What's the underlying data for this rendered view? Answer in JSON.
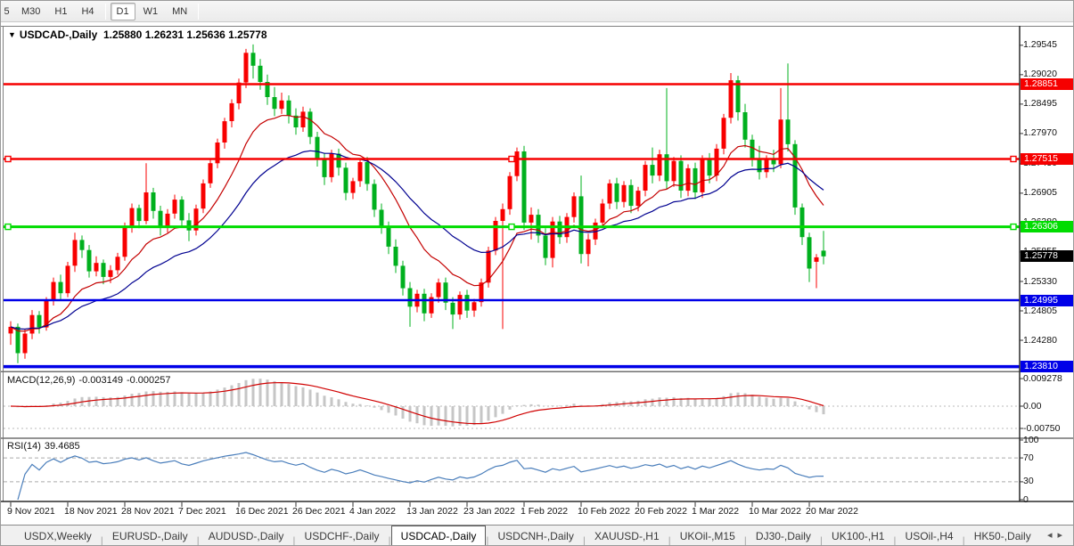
{
  "toolbar": {
    "timeframes": [
      {
        "label": "5",
        "active": false
      },
      {
        "label": "M30",
        "active": false
      },
      {
        "label": "H1",
        "active": false
      },
      {
        "label": "H4",
        "active": false
      },
      {
        "label": "D1",
        "active": true
      },
      {
        "label": "W1",
        "active": false
      },
      {
        "label": "MN",
        "active": false
      }
    ]
  },
  "chart_header": {
    "collapse_icon": "▼",
    "symbol": "USDCAD-,Daily",
    "open": "1.25880",
    "high": "1.26231",
    "low": "1.25636",
    "close": "1.25778"
  },
  "price_axis": {
    "ticks": [
      {
        "label": "1.29545",
        "price": 1.29545
      },
      {
        "label": "1.29020",
        "price": 1.2902
      },
      {
        "label": "1.28495",
        "price": 1.28495
      },
      {
        "label": "1.27970",
        "price": 1.2797
      },
      {
        "label": "1.27430",
        "price": 1.2743
      },
      {
        "label": "1.26905",
        "price": 1.26905
      },
      {
        "label": "1.26380",
        "price": 1.2638
      },
      {
        "label": "1.25855",
        "price": 1.25855
      },
      {
        "label": "1.25330",
        "price": 1.2533
      },
      {
        "label": "1.24805",
        "price": 1.24805
      },
      {
        "label": "1.24280",
        "price": 1.2428
      },
      {
        "label": "1.23755",
        "price": 1.23755
      }
    ]
  },
  "levels": [
    {
      "name": "resistance-1",
      "label": "1.28851",
      "price": 1.28851,
      "color": "#f60000",
      "width": 2.5,
      "handles": false
    },
    {
      "name": "resistance-2",
      "label": "1.27515",
      "price": 1.27515,
      "color": "#f60000",
      "width": 2.5,
      "handles": true
    },
    {
      "name": "support-1",
      "label": "1.26306",
      "price": 1.26306,
      "color": "#00dc00",
      "width": 3,
      "handles": true
    },
    {
      "name": "support-2",
      "label": "1.24995",
      "price": 1.24995,
      "color": "#0000e8",
      "width": 2.5,
      "handles": false
    },
    {
      "name": "support-3",
      "label": "1.23810",
      "price": 1.2381,
      "color": "#0000e8",
      "width": 3.5,
      "handles": false
    }
  ],
  "current_price_tag": {
    "label": "1.25778",
    "price": 1.25778,
    "bg": "#000000"
  },
  "chart_data": {
    "type": "candlestick",
    "symbol": "USDCAD",
    "timeframe": "Daily",
    "y_range": [
      1.2374,
      1.2986
    ],
    "colors": {
      "bull": "#f80000",
      "bear": "#00b01e"
    },
    "x_tick_labels": [
      {
        "label": "9 Nov 2021",
        "index": 0
      },
      {
        "label": "18 Nov 2021",
        "index": 8
      },
      {
        "label": "28 Nov 2021",
        "index": 16
      },
      {
        "label": "7 Dec 2021",
        "index": 24
      },
      {
        "label": "16 Dec 2021",
        "index": 32
      },
      {
        "label": "26 Dec 2021",
        "index": 40
      },
      {
        "label": "4 Jan 2022",
        "index": 48
      },
      {
        "label": "13 Jan 2022",
        "index": 56
      },
      {
        "label": "23 Jan 2022",
        "index": 64
      },
      {
        "label": "1 Feb 2022",
        "index": 72
      },
      {
        "label": "10 Feb 2022",
        "index": 80
      },
      {
        "label": "20 Feb 2022",
        "index": 88
      },
      {
        "label": "1 Mar 2022",
        "index": 96
      },
      {
        "label": "10 Mar 2022",
        "index": 104
      },
      {
        "label": "20 Mar 2022",
        "index": 112
      }
    ],
    "candles": [
      [
        1.244,
        1.2462,
        1.242,
        1.2452
      ],
      [
        1.2452,
        1.2458,
        1.2387,
        1.2405
      ],
      [
        1.2405,
        1.2448,
        1.2395,
        1.244
      ],
      [
        1.244,
        1.2482,
        1.243,
        1.2473
      ],
      [
        1.2473,
        1.248,
        1.244,
        1.2451
      ],
      [
        1.2451,
        1.2505,
        1.2445,
        1.2498
      ],
      [
        1.2498,
        1.254,
        1.249,
        1.2532
      ],
      [
        1.2532,
        1.2545,
        1.25,
        1.2512
      ],
      [
        1.2512,
        1.2568,
        1.2505,
        1.2561
      ],
      [
        1.2561,
        1.262,
        1.255,
        1.2607
      ],
      [
        1.2607,
        1.2615,
        1.2575,
        1.2589
      ],
      [
        1.2589,
        1.2598,
        1.254,
        1.2551
      ],
      [
        1.2551,
        1.2578,
        1.2542,
        1.2566
      ],
      [
        1.2566,
        1.2572,
        1.2528,
        1.2541
      ],
      [
        1.2541,
        1.2562,
        1.253,
        1.2553
      ],
      [
        1.2553,
        1.2584,
        1.2545,
        1.2577
      ],
      [
        1.2577,
        1.2638,
        1.257,
        1.2631
      ],
      [
        1.2631,
        1.2672,
        1.262,
        1.2664
      ],
      [
        1.2664,
        1.267,
        1.2628,
        1.2641
      ],
      [
        1.2641,
        1.2744,
        1.2635,
        1.2692
      ],
      [
        1.2692,
        1.27,
        1.2645,
        1.2659
      ],
      [
        1.2659,
        1.2668,
        1.2615,
        1.2631
      ],
      [
        1.2631,
        1.2662,
        1.262,
        1.2654
      ],
      [
        1.2654,
        1.2688,
        1.2645,
        1.2679
      ],
      [
        1.2679,
        1.2685,
        1.263,
        1.2642
      ],
      [
        1.2642,
        1.2655,
        1.2605,
        1.2624
      ],
      [
        1.2624,
        1.267,
        1.2615,
        1.2663
      ],
      [
        1.2663,
        1.2715,
        1.2655,
        1.2708
      ],
      [
        1.2708,
        1.275,
        1.27,
        1.2744
      ],
      [
        1.2744,
        1.2788,
        1.2735,
        1.2781
      ],
      [
        1.2781,
        1.2825,
        1.277,
        1.2819
      ],
      [
        1.2819,
        1.2858,
        1.2808,
        1.2851
      ],
      [
        1.2851,
        1.2895,
        1.284,
        1.2888
      ],
      [
        1.2888,
        1.2948,
        1.2878,
        1.2941
      ],
      [
        1.2941,
        1.2956,
        1.2895,
        1.2918
      ],
      [
        1.2918,
        1.293,
        1.2875,
        1.2889
      ],
      [
        1.2889,
        1.2902,
        1.2848,
        1.2862
      ],
      [
        1.2862,
        1.288,
        1.2828,
        1.2841
      ],
      [
        1.2841,
        1.287,
        1.2832,
        1.2856
      ],
      [
        1.2856,
        1.2865,
        1.2815,
        1.2829
      ],
      [
        1.2829,
        1.2842,
        1.2795,
        1.2808
      ],
      [
        1.2808,
        1.2845,
        1.28,
        1.2836
      ],
      [
        1.2836,
        1.2842,
        1.2778,
        1.2791
      ],
      [
        1.2791,
        1.28,
        1.2738,
        1.2751
      ],
      [
        1.2751,
        1.2762,
        1.2705,
        1.2719
      ],
      [
        1.2719,
        1.2768,
        1.271,
        1.2761
      ],
      [
        1.2761,
        1.277,
        1.2722,
        1.2736
      ],
      [
        1.2736,
        1.2745,
        1.2678,
        1.2691
      ],
      [
        1.2691,
        1.2718,
        1.268,
        1.2712
      ],
      [
        1.2712,
        1.2752,
        1.2702,
        1.2746
      ],
      [
        1.2746,
        1.2755,
        1.2695,
        1.2707
      ],
      [
        1.2707,
        1.2715,
        1.2648,
        1.2661
      ],
      [
        1.2661,
        1.2672,
        1.2618,
        1.2631
      ],
      [
        1.2631,
        1.264,
        1.2582,
        1.2595
      ],
      [
        1.2595,
        1.2608,
        1.2548,
        1.2561
      ],
      [
        1.2561,
        1.257,
        1.2508,
        1.2521
      ],
      [
        1.2521,
        1.2532,
        1.2452,
        1.2488
      ],
      [
        1.2488,
        1.2518,
        1.2478,
        1.2511
      ],
      [
        1.2511,
        1.252,
        1.2462,
        1.2476
      ],
      [
        1.2476,
        1.2512,
        1.2468,
        1.2505
      ],
      [
        1.2505,
        1.2538,
        1.2495,
        1.2531
      ],
      [
        1.2531,
        1.254,
        1.2482,
        1.2495
      ],
      [
        1.2495,
        1.2505,
        1.2448,
        1.2474
      ],
      [
        1.2474,
        1.2515,
        1.2465,
        1.2509
      ],
      [
        1.2509,
        1.2518,
        1.2468,
        1.2481
      ],
      [
        1.2481,
        1.2502,
        1.247,
        1.2496
      ],
      [
        1.2496,
        1.2538,
        1.2488,
        1.2531
      ],
      [
        1.2531,
        1.2595,
        1.2522,
        1.2588
      ],
      [
        1.2588,
        1.2648,
        1.258,
        1.2641
      ],
      [
        1.2641,
        1.2672,
        1.2448,
        1.2662
      ],
      [
        1.2662,
        1.2728,
        1.2652,
        1.2721
      ],
      [
        1.2721,
        1.2772,
        1.2712,
        1.2765
      ],
      [
        1.2765,
        1.2775,
        1.2625,
        1.2638
      ],
      [
        1.2638,
        1.2665,
        1.2608,
        1.2652
      ],
      [
        1.2652,
        1.2662,
        1.2602,
        1.2615
      ],
      [
        1.2615,
        1.2628,
        1.2562,
        1.2575
      ],
      [
        1.2575,
        1.2648,
        1.2558,
        1.264
      ],
      [
        1.264,
        1.265,
        1.26,
        1.2612
      ],
      [
        1.2612,
        1.2655,
        1.2602,
        1.2648
      ],
      [
        1.2648,
        1.2692,
        1.2638,
        1.2685
      ],
      [
        1.2685,
        1.2722,
        1.2565,
        1.2582
      ],
      [
        1.2582,
        1.2618,
        1.256,
        1.2608
      ],
      [
        1.2608,
        1.2645,
        1.2598,
        1.2638
      ],
      [
        1.2638,
        1.268,
        1.2628,
        1.2672
      ],
      [
        1.2672,
        1.2715,
        1.2662,
        1.2708
      ],
      [
        1.2708,
        1.2718,
        1.2662,
        1.2675
      ],
      [
        1.2675,
        1.2712,
        1.2665,
        1.2705
      ],
      [
        1.2705,
        1.2715,
        1.2655,
        1.2668
      ],
      [
        1.2668,
        1.2702,
        1.2658,
        1.2695
      ],
      [
        1.2695,
        1.2748,
        1.2685,
        1.2741
      ],
      [
        1.2741,
        1.2772,
        1.2708,
        1.2722
      ],
      [
        1.2722,
        1.2768,
        1.2712,
        1.276
      ],
      [
        1.276,
        1.2878,
        1.2698,
        1.2712
      ],
      [
        1.2712,
        1.2755,
        1.2702,
        1.2748
      ],
      [
        1.2748,
        1.2758,
        1.2682,
        1.2695
      ],
      [
        1.2695,
        1.2742,
        1.2685,
        1.2735
      ],
      [
        1.2735,
        1.2745,
        1.268,
        1.2692
      ],
      [
        1.2692,
        1.2758,
        1.2682,
        1.2752
      ],
      [
        1.2752,
        1.2762,
        1.2708,
        1.2722
      ],
      [
        1.2722,
        1.2778,
        1.2712,
        1.277
      ],
      [
        1.277,
        1.2832,
        1.276,
        1.2825
      ],
      [
        1.2825,
        1.2905,
        1.2815,
        1.2892
      ],
      [
        1.2892,
        1.29,
        1.282,
        1.2835
      ],
      [
        1.2835,
        1.285,
        1.2772,
        1.2786
      ],
      [
        1.2786,
        1.2795,
        1.2738,
        1.2752
      ],
      [
        1.2752,
        1.2775,
        1.2715,
        1.2728
      ],
      [
        1.2728,
        1.2758,
        1.2718,
        1.275
      ],
      [
        1.275,
        1.2768,
        1.2728,
        1.2742
      ],
      [
        1.2742,
        1.2878,
        1.2735,
        1.2822
      ],
      [
        1.2822,
        1.2922,
        1.2765,
        1.2778
      ],
      [
        1.2778,
        1.2785,
        1.2652,
        1.2665
      ],
      [
        1.2665,
        1.2672,
        1.2598,
        1.2612
      ],
      [
        1.2612,
        1.262,
        1.2532,
        1.2556
      ],
      [
        1.2568,
        1.2582,
        1.2521,
        1.2576
      ],
      [
        1.2588,
        1.26231,
        1.25636,
        1.25778
      ]
    ],
    "overlays": [
      {
        "name": "fast-ma",
        "type": "ema",
        "period": 12,
        "color": "#c40000"
      },
      {
        "name": "slow-ma",
        "type": "ema",
        "period": 26,
        "color": "#000090"
      }
    ],
    "indicators": [
      {
        "name": "MACD",
        "label": "MACD(12,26,9)",
        "value_main": "-0.003149",
        "value_signal": "-0.000257",
        "fast": 12,
        "slow": 26,
        "signal": 9,
        "histogram_color": "#c6c6c6",
        "signal_color": "#d00000",
        "axis": [
          {
            "label": "0.009278",
            "value": 0.009278
          },
          {
            "label": "0.00",
            "value": 0
          },
          {
            "label": "-0.00750",
            "value": -0.0075
          }
        ]
      },
      {
        "name": "RSI",
        "label": "RSI(14)",
        "value": "39.4685",
        "period": 14,
        "color": "#4a7ebb",
        "levels": [
          70,
          30
        ],
        "axis": [
          {
            "label": "100",
            "value": 100
          },
          {
            "label": "70",
            "value": 70
          },
          {
            "label": "30",
            "value": 30
          },
          {
            "label": "0",
            "value": 0
          }
        ]
      }
    ]
  },
  "tabs": {
    "items": [
      {
        "label": "USDX,Weekly",
        "active": false
      },
      {
        "label": "EURUSD-,Daily",
        "active": false
      },
      {
        "label": "AUDUSD-,Daily",
        "active": false
      },
      {
        "label": "USDCHF-,Daily",
        "active": false
      },
      {
        "label": "USDCAD-,Daily",
        "active": true
      },
      {
        "label": "USDCNH-,Daily",
        "active": false
      },
      {
        "label": "XAUUSD-,H1",
        "active": false
      },
      {
        "label": "UKOil-,M15",
        "active": false
      },
      {
        "label": "DJ30-,Daily",
        "active": false
      },
      {
        "label": "UK100-,H1",
        "active": false
      },
      {
        "label": "USOil-,H4",
        "active": false
      },
      {
        "label": "HK50-,Daily",
        "active": false
      }
    ],
    "scroll_left": "◂",
    "scroll_right": "▸"
  }
}
